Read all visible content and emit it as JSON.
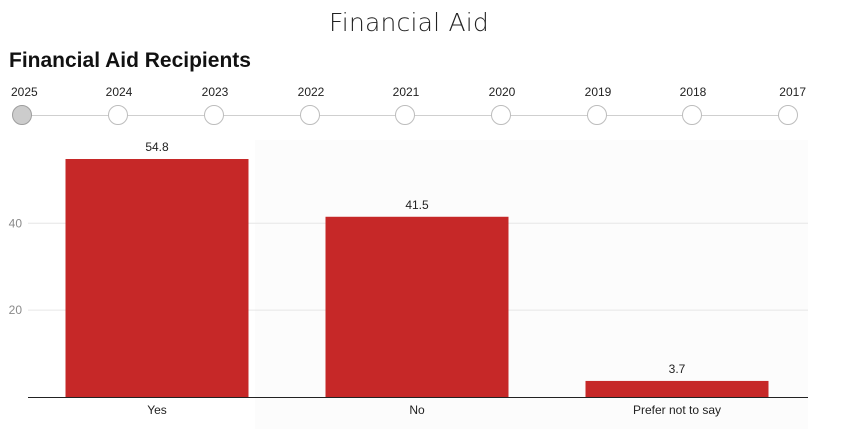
{
  "header": {
    "page_title": "Financial Aid",
    "chart_title": "Financial Aid Recipients"
  },
  "timeline": {
    "selected": "2025",
    "years": [
      "2025",
      "2024",
      "2023",
      "2022",
      "2021",
      "2020",
      "2019",
      "2018",
      "2017"
    ]
  },
  "chart_data": {
    "type": "bar",
    "title": "Financial Aid Recipients",
    "categories": [
      "Yes",
      "No",
      "Prefer not to say"
    ],
    "values": [
      54.8,
      41.5,
      3.7
    ],
    "value_labels": [
      "54.8",
      "41.5",
      "3.7"
    ],
    "y_ticks": [
      "20",
      "40"
    ],
    "ylim": [
      0,
      60
    ],
    "grid": true,
    "bar_color": "#c62828",
    "xlabel": "",
    "ylabel": ""
  }
}
